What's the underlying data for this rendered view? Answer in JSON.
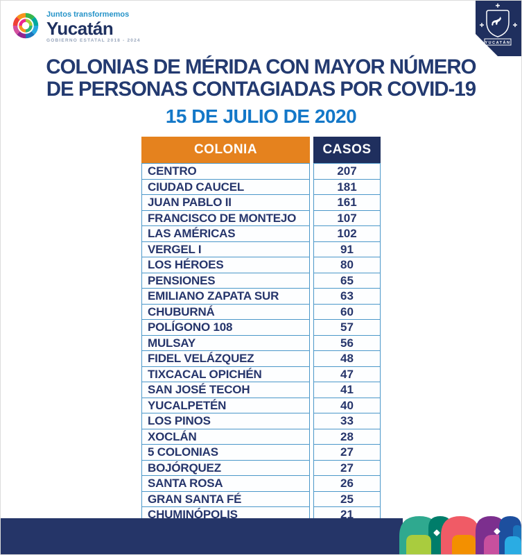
{
  "brand": {
    "tagline": "Juntos transformemos",
    "name": "Yucatán",
    "subline": "GOBIERNO ESTATAL 2018 - 2024",
    "shield_label": "YUCATÁN"
  },
  "title": {
    "line1": "COLONIAS DE MÉRIDA CON MAYOR NÚMERO",
    "line2": "DE PERSONAS CONTAGIADAS POR COVID-19",
    "date": "15 DE JULIO DE 2020"
  },
  "table": {
    "columns": [
      "COLONIA",
      "CASOS"
    ],
    "rows": [
      [
        "CENTRO",
        207
      ],
      [
        "CIUDAD CAUCEL",
        181
      ],
      [
        "JUAN PABLO II",
        161
      ],
      [
        "FRANCISCO DE MONTEJO",
        107
      ],
      [
        "LAS AMÉRICAS",
        102
      ],
      [
        "VERGEL I",
        91
      ],
      [
        "LOS HÉROES",
        80
      ],
      [
        "PENSIONES",
        65
      ],
      [
        "EMILIANO ZAPATA SUR",
        63
      ],
      [
        "CHUBURNÁ",
        60
      ],
      [
        "POLÍGONO 108",
        57
      ],
      [
        "MULSAY",
        56
      ],
      [
        "FIDEL VELÁZQUEZ",
        48
      ],
      [
        "TIXCACAL OPICHÉN",
        47
      ],
      [
        "SAN JOSÉ TECOH",
        41
      ],
      [
        "YUCALPETÉN",
        40
      ],
      [
        "LOS PINOS",
        33
      ],
      [
        "XOCLÁN",
        28
      ],
      [
        "5 COLONIAS",
        27
      ],
      [
        "BOJÓRQUEZ",
        27
      ],
      [
        "SANTA ROSA",
        26
      ],
      [
        "GRAN SANTA FÉ",
        25
      ],
      [
        "CHUMINÓPOLIS",
        21
      ]
    ]
  },
  "colors": {
    "title_navy": "#233A70",
    "date_blue": "#1478C8",
    "header_orange": "#E5821E",
    "header_navy": "#1F2F5E",
    "table_border_blue": "#4A97C9",
    "footer_navy": "#253568",
    "pattern_palette": [
      "#2FA98F",
      "#007D6A",
      "#A9CC3E",
      "#F05B66",
      "#F39000",
      "#7C2F8E",
      "#C8509E",
      "#1D4F9E",
      "#1B75BC",
      "#2AACE3"
    ]
  },
  "chart_data": {
    "type": "table",
    "title": "COLONIAS DE MÉRIDA CON MAYOR NÚMERO DE PERSONAS CONTAGIADAS POR COVID-19",
    "date": "15 DE JULIO DE 2020",
    "columns": [
      "COLONIA",
      "CASOS"
    ],
    "categories": [
      "CENTRO",
      "CIUDAD CAUCEL",
      "JUAN PABLO II",
      "FRANCISCO DE MONTEJO",
      "LAS AMÉRICAS",
      "VERGEL I",
      "LOS HÉROES",
      "PENSIONES",
      "EMILIANO ZAPATA SUR",
      "CHUBURNÁ",
      "POLÍGONO 108",
      "MULSAY",
      "FIDEL VELÁZQUEZ",
      "TIXCACAL OPICHÉN",
      "SAN JOSÉ TECOH",
      "YUCALPETÉN",
      "LOS PINOS",
      "XOCLÁN",
      "5 COLONIAS",
      "BOJÓRQUEZ",
      "SANTA ROSA",
      "GRAN SANTA FÉ",
      "CHUMINÓPOLIS"
    ],
    "values": [
      207,
      181,
      161,
      107,
      102,
      91,
      80,
      65,
      63,
      60,
      57,
      56,
      48,
      47,
      41,
      40,
      33,
      28,
      27,
      27,
      26,
      25,
      21
    ]
  }
}
